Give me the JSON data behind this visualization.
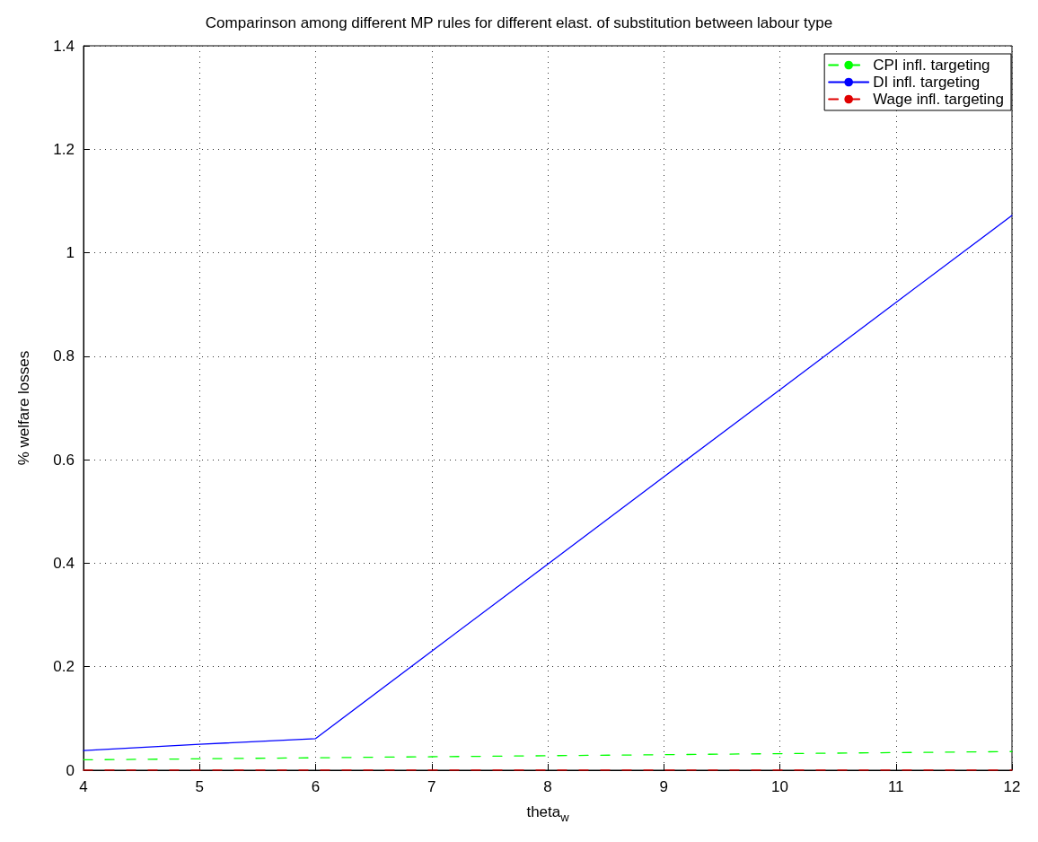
{
  "chart_data": {
    "type": "line",
    "title": "Comparinson among different MP rules for different elast. of substitution between labour type",
    "xlabel": "theta$_{w}$",
    "ylabel": "% welfare losses",
    "x": [
      4,
      5,
      6,
      7,
      8,
      9,
      10,
      11,
      12
    ],
    "series": [
      {
        "name": "CPI infl. targeting",
        "color": "#00ff00",
        "line_style": "dashed",
        "values": [
          0.02,
          0.022,
          0.024,
          0.026,
          0.028,
          0.03,
          0.032,
          0.034,
          0.036
        ]
      },
      {
        "name": "DI infl. targeting",
        "color": "#0000ff",
        "line_style": "solid",
        "values": [
          0.038,
          0.05,
          0.061,
          0.23,
          0.398,
          0.567,
          0.735,
          0.904,
          1.072
        ]
      },
      {
        "name": "Wage infl. targeting",
        "color": "#e00000",
        "line_style": "dashed",
        "values": [
          0,
          0,
          0,
          0,
          0,
          0,
          0,
          0,
          0
        ]
      }
    ],
    "xlim": [
      4,
      12
    ],
    "xticks": [
      4,
      5,
      6,
      7,
      8,
      9,
      10,
      11,
      12
    ],
    "ylim": [
      0,
      1.4
    ],
    "yticks": [
      0,
      0.2,
      0.4,
      0.6,
      0.8,
      1,
      1.2,
      1.4
    ],
    "grid": true,
    "legend": "top right",
    "marker": "none"
  }
}
